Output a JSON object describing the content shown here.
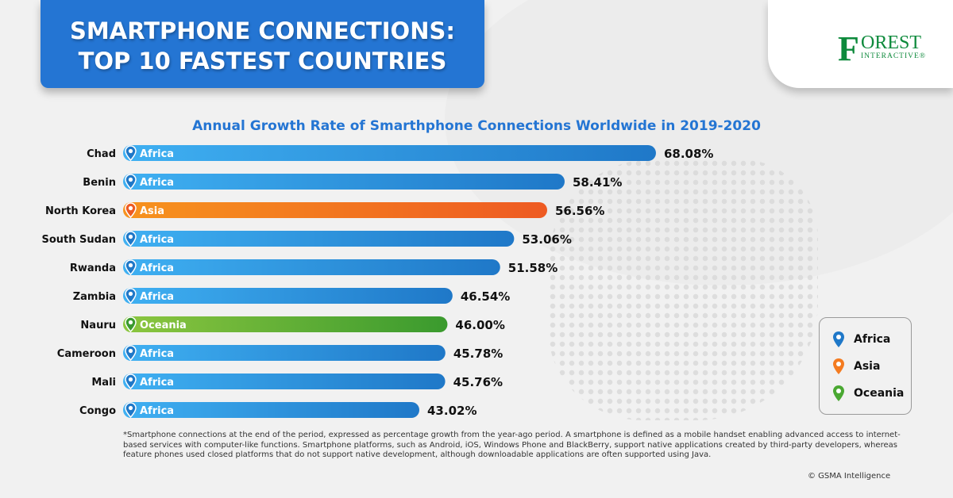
{
  "header": {
    "title_line1": "SMARTPHONE CONNECTIONS:",
    "title_line2": "TOP 10 FASTEST COUNTRIES"
  },
  "logo": {
    "text": "FOREST INTERACTIVE"
  },
  "chart_data": {
    "type": "bar",
    "orientation": "horizontal",
    "title": "Annual Growth Rate of Smarthphone Connections Worldwide in 2019-2020",
    "categories": [
      "Chad",
      "Benin",
      "North Korea",
      "South Sudan",
      "Rwanda",
      "Zambia",
      "Nauru",
      "Cameroon",
      "Mali",
      "Congo"
    ],
    "regions": [
      "Africa",
      "Africa",
      "Asia",
      "Africa",
      "Africa",
      "Africa",
      "Oceania",
      "Africa",
      "Africa",
      "Africa"
    ],
    "values": [
      68.08,
      58.41,
      56.56,
      53.06,
      51.58,
      46.54,
      46.0,
      45.78,
      45.76,
      43.02
    ],
    "labels": [
      "68.08%",
      "58.41%",
      "56.56%",
      "53.06%",
      "51.58%",
      "46.54%",
      "46.00%",
      "45.78%",
      "45.76%",
      "43.02%"
    ],
    "unit": "%",
    "region_colors": {
      "Africa": [
        "#3fb0f2",
        "#1f78c8"
      ],
      "Asia": [
        "#f7931e",
        "#ee5a22"
      ],
      "Oceania": [
        "#8cc63f",
        "#3a9a2e"
      ]
    },
    "legend": {
      "placement": "bottom-right",
      "items": [
        "Africa",
        "Asia",
        "Oceania"
      ]
    }
  },
  "legend_labels": [
    "Africa",
    "Asia",
    "Oceania"
  ],
  "footnote": "*Smartphone connections at the end of the period, expressed as percentage growth from the year-ago period. A smartphone is defined as a mobile handset enabling advanced access to internet-based services with computer-like functions. Smartphone platforms, such as Android, iOS, Windows Phone and BlackBerry, support native applications created by third-party developers, whereas feature phones used closed platforms that do not support native development, although downloadable applications are often supported using Java.",
  "source": "© GSMA Intelligence"
}
